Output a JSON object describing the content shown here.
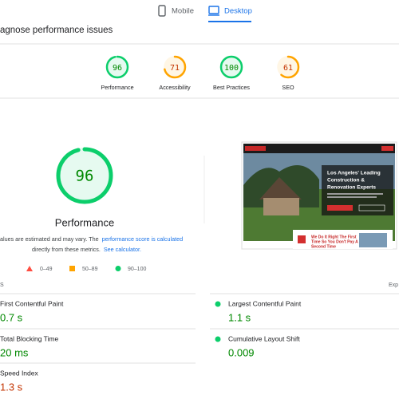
{
  "tabs": [
    {
      "label": "Mobile"
    },
    {
      "label": "Desktop",
      "active": true
    }
  ],
  "heading": "agnose performance issues",
  "scores": [
    {
      "label": "Performance",
      "value": 96,
      "color": "#0cce6b",
      "text_color": "#008800"
    },
    {
      "label": "Accessibility",
      "value": 71,
      "color": "#ffa400",
      "text_color": "#c33300"
    },
    {
      "label": "Best Practices",
      "value": 100,
      "color": "#0cce6b",
      "text_color": "#008800"
    },
    {
      "label": "SEO",
      "value": 61,
      "color": "#ffa400",
      "text_color": "#c33300"
    }
  ],
  "main_score": {
    "label": "Performance",
    "value": 96,
    "color": "#0cce6b",
    "text_color": "#008800"
  },
  "note": {
    "line1": "alues are estimated and may vary. The",
    "link1": "performance score is calculated",
    "line2": "directly from these metrics.",
    "link2": "See calculator."
  },
  "legend": [
    "0–49",
    "50–89",
    "90–100"
  ],
  "screenshot": {
    "headline": [
      "Los Angeles' Leading",
      "Construction &",
      "Renovation Experts"
    ],
    "tagline": [
      "We Do It Right The First",
      "Time So You Don't Pay A",
      "Second Time"
    ]
  },
  "metrics_heading": "S",
  "expand": "Exp",
  "metrics": [
    {
      "label": "First Contentful Paint",
      "value": "0.7 s",
      "color": "#008800"
    },
    {
      "label": "Largest Contentful Paint",
      "value": "1.1 s",
      "color": "#008800"
    },
    {
      "label": "Total Blocking Time",
      "value": "20 ms",
      "color": "#008800"
    },
    {
      "label": "Cumulative Layout Shift",
      "value": "0.009",
      "color": "#008800"
    },
    {
      "label": "Speed Index",
      "value": "1.3 s",
      "color": "#c33300"
    }
  ]
}
